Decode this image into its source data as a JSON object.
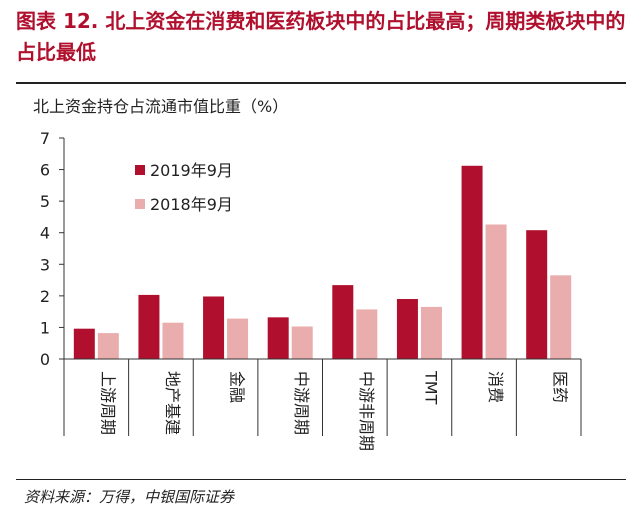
{
  "header": {
    "title": "图表 12. 北上资金在消费和医药板块中的占比最高；周期类板块中的占比最低"
  },
  "footer": {
    "source": "资料来源：万得，中银国际证券"
  },
  "colors": {
    "title": "#b0102e",
    "series_2019": "#b0102e",
    "series_2018": "#e8adac",
    "axis": "#333333"
  },
  "chart_data": {
    "type": "bar",
    "title": "北上资金持仓占流通市值比重（%）",
    "xlabel": "",
    "ylabel": "",
    "ylim": [
      0,
      7
    ],
    "yticks": [
      "0",
      "1",
      "2",
      "3",
      "4",
      "5",
      "6",
      "7"
    ],
    "categories": [
      "上游周期",
      "地产基建",
      "金融",
      "中游周期",
      "中游非周期",
      "TMT",
      "消费",
      "医药"
    ],
    "series": [
      {
        "name": "2019年9月",
        "values": [
          0.96,
          2.03,
          1.98,
          1.32,
          2.34,
          1.9,
          6.12,
          4.08
        ]
      },
      {
        "name": "2018年9月",
        "values": [
          0.82,
          1.15,
          1.28,
          1.03,
          1.57,
          1.65,
          4.26,
          2.65
        ]
      }
    ],
    "legend_position": "upper-left"
  }
}
